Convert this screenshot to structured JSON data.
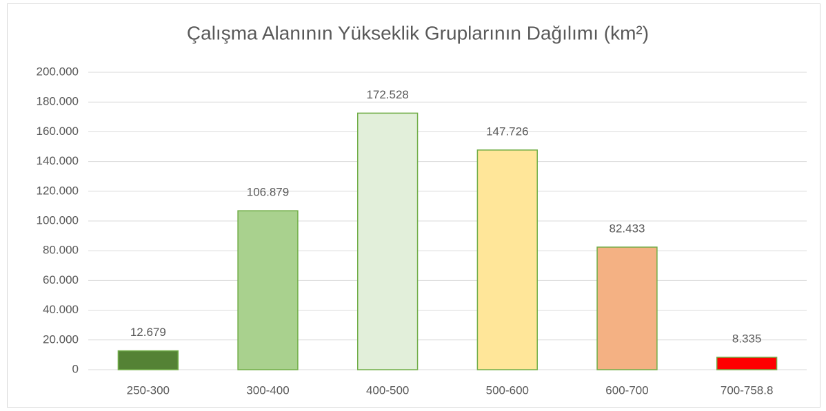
{
  "chart_data": {
    "type": "bar",
    "title": "Çalışma Alanının Yükseklik Gruplarının Dağılımı (km²)",
    "categories": [
      "250-300",
      "300-400",
      "400-500",
      "500-600",
      "600-700",
      "700-758.8"
    ],
    "values": [
      12679,
      106879,
      172528,
      147726,
      82433,
      8335
    ],
    "value_labels": [
      "12.679",
      "106.879",
      "172.528",
      "147.726",
      "82.433",
      "8.335"
    ],
    "colors": [
      "#548235",
      "#a9d18e",
      "#e2efda",
      "#ffe699",
      "#f4b183",
      "#ff0000"
    ],
    "edgecolor": "#70ad47",
    "ylim": [
      0,
      200000
    ],
    "yticks": [
      0,
      {
        "value": 20000,
        "label": "20.000"
      },
      {
        "value": 40000,
        "label": "40.000"
      },
      {
        "value": 60000,
        "label": "60.000"
      },
      {
        "value": 80000,
        "label": "80.000"
      },
      {
        "value": 100000,
        "label": "100.000"
      },
      {
        "value": 120000,
        "label": "120.000"
      },
      {
        "value": 140000,
        "label": "140.000"
      },
      {
        "value": 160000,
        "label": "160.000"
      },
      {
        "value": 180000,
        "label": "180.000"
      },
      {
        "value": 200000,
        "label": "200.000"
      }
    ],
    "grid": true
  }
}
